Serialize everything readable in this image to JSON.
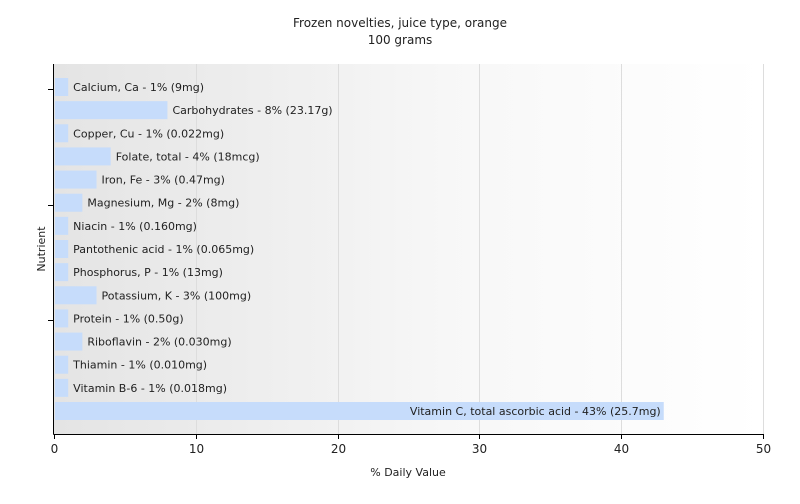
{
  "chart_data": {
    "type": "bar",
    "orientation": "horizontal",
    "title": "Frozen novelties, juice type, orange",
    "subtitle": "100 grams",
    "xlabel": "% Daily Value",
    "ylabel": "Nutrient",
    "xlim": [
      0,
      50
    ],
    "xticks": [
      0,
      10,
      20,
      30,
      40,
      50
    ],
    "grid": "vertical",
    "colors": {
      "bar": "#c6dcfb",
      "axis": "#000000",
      "grid": "#dddddd",
      "text": "#222222"
    },
    "categories": [
      "Calcium, Ca",
      "Carbohydrates",
      "Copper, Cu",
      "Folate, total",
      "Iron, Fe",
      "Magnesium, Mg",
      "Niacin",
      "Pantothenic acid",
      "Phosphorus, P",
      "Potassium, K",
      "Protein",
      "Riboflavin",
      "Thiamin",
      "Vitamin B-6",
      "Vitamin C, total ascorbic acid"
    ],
    "values": [
      1,
      8,
      1,
      4,
      3,
      2,
      1,
      1,
      1,
      3,
      1,
      2,
      1,
      1,
      43
    ],
    "labels": [
      "Calcium, Ca - 1% (9mg)",
      "Carbohydrates - 8% (23.17g)",
      "Copper, Cu - 1% (0.022mg)",
      "Folate, total - 4% (18mcg)",
      "Iron, Fe - 3% (0.47mg)",
      "Magnesium, Mg - 2% (8mg)",
      "Niacin - 1% (0.160mg)",
      "Pantothenic acid - 1% (0.065mg)",
      "Phosphorus, P - 1% (13mg)",
      "Potassium, K - 3% (100mg)",
      "Protein - 1% (0.50g)",
      "Riboflavin - 2% (0.030mg)",
      "Thiamin - 1% (0.010mg)",
      "Vitamin B-6 - 1% (0.018mg)",
      "Vitamin C, total ascorbic acid - 43% (25.7mg)"
    ]
  }
}
